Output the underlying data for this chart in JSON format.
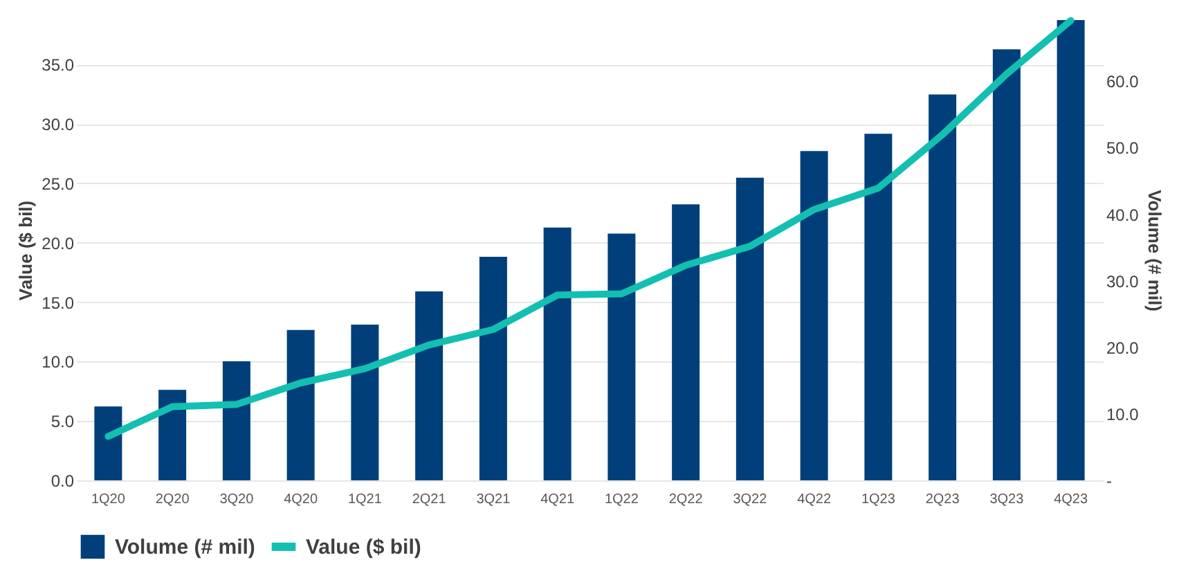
{
  "chart_data": {
    "type": "bar",
    "categories": [
      "1Q20",
      "2Q20",
      "3Q20",
      "4Q20",
      "1Q21",
      "2Q21",
      "3Q21",
      "4Q21",
      "1Q22",
      "2Q22",
      "3Q22",
      "4Q22",
      "1Q23",
      "2Q23",
      "3Q23",
      "4Q23"
    ],
    "series": [
      {
        "name": "Volume (# mil)",
        "axis": "y2",
        "color": "#003f7a",
        "values": [
          11.1,
          13.6,
          17.9,
          22.6,
          23.4,
          28.4,
          33.6,
          38.0,
          37.1,
          41.5,
          45.5,
          49.5,
          52.1,
          58.0,
          64.8,
          69.2
        ]
      },
      {
        "name": "Value ($ bil)",
        "type": "line",
        "color": "#13bfb1",
        "values": [
          3.7,
          6.2,
          6.4,
          8.2,
          9.4,
          11.4,
          12.7,
          15.6,
          15.7,
          18.1,
          19.7,
          22.8,
          24.6,
          29.1,
          34.2,
          38.7
        ]
      }
    ],
    "ylabel": "Value ($ bil)",
    "y2label": "Volume (# mil)",
    "ylim": [
      0,
      38.8
    ],
    "yticks": [
      {
        "value": 0,
        "label": "0.0"
      },
      {
        "value": 5,
        "label": "5.0"
      },
      {
        "value": 10,
        "label": "10.0"
      },
      {
        "value": 15,
        "label": "15.0"
      },
      {
        "value": 20,
        "label": "20.0"
      },
      {
        "value": 25,
        "label": "25.0"
      },
      {
        "value": 30,
        "label": "30.0"
      },
      {
        "value": 35,
        "label": "35.0"
      }
    ],
    "y2lim": [
      0,
      69.3
    ],
    "y2ticks": [
      {
        "value": 0,
        "label": "-"
      },
      {
        "value": 10,
        "label": "10.0"
      },
      {
        "value": 20,
        "label": "20.0"
      },
      {
        "value": 30,
        "label": "30.0"
      },
      {
        "value": 40,
        "label": "40.0"
      },
      {
        "value": 50,
        "label": "50.0"
      },
      {
        "value": 60,
        "label": "60.0"
      }
    ],
    "grid": "y",
    "legend": "bottom",
    "marker": "none",
    "line_style": "solid"
  }
}
